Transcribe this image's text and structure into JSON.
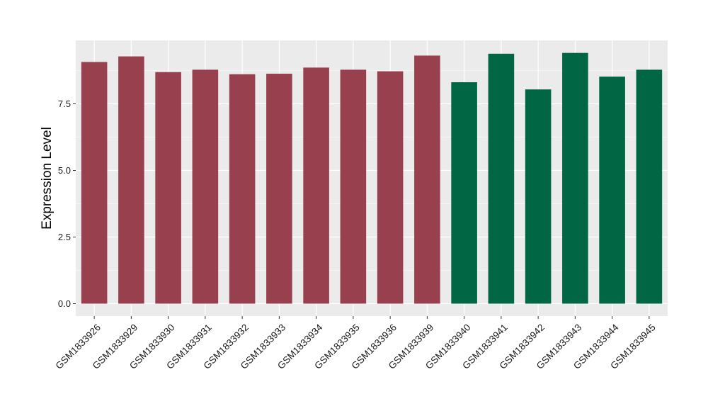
{
  "chart_data": {
    "type": "bar",
    "title": "",
    "xlabel": "",
    "ylabel": "Expression Level",
    "ylim": [
      0,
      10.1
    ],
    "yticks": [
      0.0,
      2.5,
      5.0,
      7.5
    ],
    "ytick_labels": [
      "0.0",
      "2.5",
      "5.0",
      "7.5"
    ],
    "grid": true,
    "legend": "none",
    "categories": [
      "GSM1833926",
      "GSM1833929",
      "GSM1833930",
      "GSM1833931",
      "GSM1833932",
      "GSM1833933",
      "GSM1833934",
      "GSM1833935",
      "GSM1833936",
      "GSM1833939",
      "GSM1833940",
      "GSM1833941",
      "GSM1833942",
      "GSM1833943",
      "GSM1833944",
      "GSM1833945"
    ],
    "values": [
      9.07,
      9.28,
      8.69,
      8.78,
      8.61,
      8.63,
      8.86,
      8.78,
      8.72,
      9.31,
      8.31,
      9.38,
      8.04,
      9.41,
      8.52,
      8.78
    ],
    "groups": [
      "a",
      "a",
      "a",
      "a",
      "a",
      "a",
      "a",
      "a",
      "a",
      "a",
      "b",
      "b",
      "b",
      "b",
      "b",
      "b"
    ],
    "colors": {
      "a": "#99404E",
      "b": "#006643",
      "panel": "#EBEBEB",
      "grid": "#FFFFFF",
      "text": "#000000",
      "tick_text": "#1A1A1A"
    }
  }
}
